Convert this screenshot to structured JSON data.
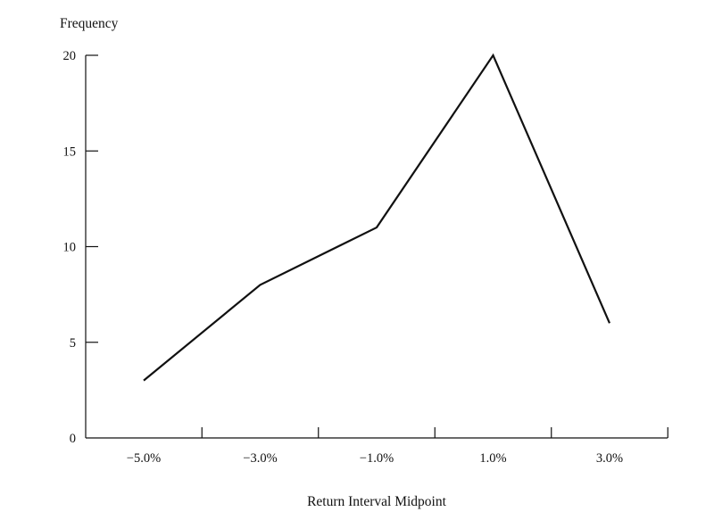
{
  "chart_data": {
    "type": "line",
    "title": "",
    "ylabel": "Frequency",
    "xlabel": "Return Interval Midpoint",
    "x": [
      "−5.0%",
      "−3.0%",
      "−1.0%",
      "1.0%",
      "3.0%"
    ],
    "series": [
      {
        "values": [
          3,
          8,
          11,
          20,
          6
        ],
        "color": "#111111"
      }
    ],
    "ylim": [
      0,
      20
    ],
    "yticks": [
      0,
      5,
      10,
      15,
      20
    ],
    "grid": false,
    "legend": "none"
  }
}
